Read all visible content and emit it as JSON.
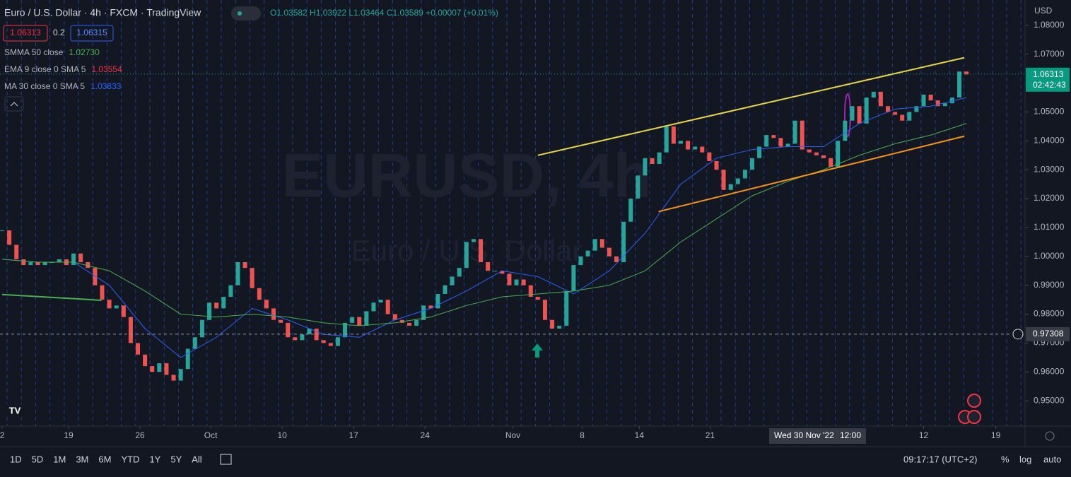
{
  "header": {
    "symbol": "Euro / U.S. Dollar · 4h · FXCM · TradingView",
    "ohlc": "O1.03582 H1.03922 L1.03464 C1.03589 +0.00007 (+0.01%)",
    "sell": "1.06313",
    "spread": "0.2",
    "buy": "1.06315"
  },
  "indicators": [
    {
      "name": "SMMA 50 close",
      "value": "1.02730",
      "color": "#4caf50"
    },
    {
      "name": "EMA 9 close 0 SMA 5",
      "value": "1.03554",
      "color": "#f23645"
    },
    {
      "name": "MA 30 close 0 SMA 5",
      "value": "1.03833",
      "color": "#2962ff"
    }
  ],
  "watermark": {
    "line1": "EURUSD, 4h",
    "line2": "Euro / U.S. Dollar"
  },
  "chart_data": {
    "type": "candlestick",
    "currency": "USD",
    "closes": [
      1.009,
      1.004,
      0.999,
      0.997,
      0.998,
      0.997,
      0.998,
      0.998,
      0.999,
      0.997,
      1.001,
      0.998,
      0.996,
      0.99,
      0.985,
      0.982,
      0.983,
      0.979,
      0.97,
      0.966,
      0.962,
      0.96,
      0.963,
      0.959,
      0.957,
      0.961,
      0.968,
      0.972,
      0.978,
      0.984,
      0.982,
      0.986,
      0.99,
      0.998,
      0.996,
      0.989,
      0.985,
      0.982,
      0.978,
      0.977,
      0.972,
      0.971,
      0.973,
      0.975,
      0.971,
      0.97,
      0.969,
      0.972,
      0.977,
      0.979,
      0.976,
      0.981,
      0.984,
      0.985,
      0.98,
      0.978,
      0.977,
      0.976,
      0.978,
      0.983,
      0.982,
      0.987,
      0.99,
      0.993,
      0.996,
      1.005,
      1.006,
      0.998,
      0.995,
      0.995,
      0.994,
      0.99,
      0.992,
      0.99,
      0.986,
      0.985,
      0.978,
      0.975,
      0.976,
      0.988,
      0.997,
      1.0,
      1.002,
      1.006,
      1.003,
      1.0,
      0.998,
      1.012,
      1.02,
      1.028,
      1.034,
      1.032,
      1.036,
      1.045,
      1.039,
      1.04,
      1.037,
      1.038,
      1.036,
      1.033,
      1.03,
      1.023,
      1.025,
      1.027,
      1.03,
      1.034,
      1.038,
      1.042,
      1.041,
      1.038,
      1.039,
      1.047,
      1.037,
      1.036,
      1.035,
      1.034,
      1.031,
      1.04,
      1.047,
      1.052,
      1.046,
      1.055,
      1.057,
      1.052,
      1.05,
      1.049,
      1.047,
      1.05,
      1.052,
      1.056,
      1.054,
      1.052,
      1.053,
      1.055,
      1.064,
      1.063
    ],
    "x": [
      0,
      5,
      10,
      15,
      20,
      25,
      30,
      35,
      40,
      45,
      50,
      55,
      60,
      65,
      70,
      75,
      80,
      85,
      90,
      95,
      100,
      105,
      110,
      115,
      120,
      125,
      130,
      135
    ],
    "series": [
      {
        "name": "MA 30 close 0 SMA 5",
        "color": "#2962ff",
        "values": [
          0.999,
          0.998,
          0.998,
          0.99,
          0.975,
          0.965,
          0.972,
          0.982,
          0.978,
          0.973,
          0.972,
          0.978,
          0.982,
          0.988,
          0.995,
          0.993,
          0.987,
          0.995,
          1.008,
          1.025,
          1.034,
          1.037,
          1.038,
          1.038,
          1.046,
          1.051,
          1.052,
          1.055
        ]
      },
      {
        "name": "SMMA 50 close",
        "color": "#4caf50",
        "values": [
          0.999,
          0.998,
          0.998,
          0.995,
          0.988,
          0.98,
          0.979,
          0.98,
          0.979,
          0.977,
          0.976,
          0.977,
          0.979,
          0.983,
          0.986,
          0.987,
          0.988,
          0.99,
          0.995,
          1.005,
          1.013,
          1.021,
          1.026,
          1.03,
          1.035,
          1.039,
          1.042,
          1.046
        ]
      }
    ],
    "drawings": [
      {
        "color": "#e8d44d",
        "x": [
          75,
          134.7
        ],
        "y": [
          1.035,
          1.0688
        ]
      },
      {
        "color": "#f7931a",
        "x": [
          91.9,
          134.7
        ],
        "y": [
          1.0155,
          1.0416
        ]
      },
      {
        "color": "#4caf50",
        "x": [
          0,
          13.9
        ],
        "y": [
          0.9868,
          0.9848
        ]
      }
    ],
    "xlim": [
      -0.3,
      143.2
    ],
    "ylim": [
      0.94124,
      1.08876
    ],
    "yticks": [
      {
        "value": 1.08,
        "label": "1.08000"
      },
      {
        "value": 1.07,
        "label": "1.07000"
      },
      {
        "value": 1.06,
        "label": "1.06000"
      },
      {
        "value": 1.05,
        "label": "1.05000"
      },
      {
        "value": 1.04,
        "label": "1.04000"
      },
      {
        "value": 1.03,
        "label": "1.03000"
      },
      {
        "value": 1.02,
        "label": "1.02000"
      },
      {
        "value": 1.01,
        "label": "1.01000"
      },
      {
        "value": 1.0,
        "label": "1.00000"
      },
      {
        "value": 0.99,
        "label": "0.99000"
      },
      {
        "value": 0.98,
        "label": "0.98000"
      },
      {
        "value": 0.97,
        "label": "0.97000"
      },
      {
        "value": 0.96,
        "label": "0.96000"
      },
      {
        "value": 0.95,
        "label": "0.95000"
      }
    ],
    "xticks": [
      {
        "value": 0,
        "label": "2"
      },
      {
        "value": 9.3,
        "label": "19"
      },
      {
        "value": 19.3,
        "label": "26"
      },
      {
        "value": 29.2,
        "label": "Oct"
      },
      {
        "value": 39.2,
        "label": "10"
      },
      {
        "value": 49.2,
        "label": "17"
      },
      {
        "value": 59.2,
        "label": "24"
      },
      {
        "value": 71.5,
        "label": "Nov"
      },
      {
        "value": 81.2,
        "label": "8"
      },
      {
        "value": 89.2,
        "label": "14"
      },
      {
        "value": 99.1,
        "label": "21"
      },
      {
        "value": 129.0,
        "label": "12"
      },
      {
        "value": 139.1,
        "label": "19"
      }
    ],
    "last_price": 1.06313,
    "countdown": "02:42:43",
    "crosshair_price": 0.97308,
    "crosshair_time": "Wed 30 Nov '22",
    "crosshair_hour": "12:00"
  },
  "toolbar": {
    "ranges": [
      "1D",
      "5D",
      "1M",
      "3M",
      "6M",
      "YTD",
      "1Y",
      "5Y",
      "All"
    ],
    "clock": "09:17:17 (UTC+2)",
    "percent": "%",
    "log": "log",
    "auto": "auto"
  }
}
